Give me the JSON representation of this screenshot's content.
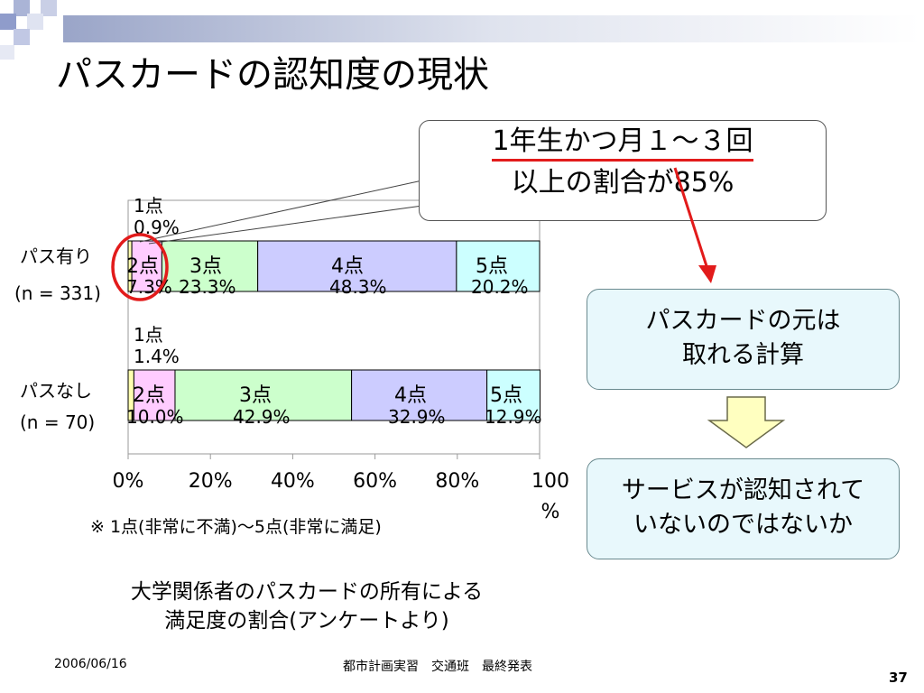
{
  "slide": {
    "title": "パスカードの認知度の現状",
    "note": "※ 1点(非常に不満)～5点(非常に満足)",
    "caption_line1": "大学関係者のパスカードの所有による",
    "caption_line2": "満足度の割合(アンケートより)",
    "footer_date": "2006/06/16",
    "footer_center": "都市計画実習　交通班　最終発表",
    "page_number": "37"
  },
  "callout": {
    "line1": "1年生かつ月１～３回",
    "line2": "以上の割合が85%"
  },
  "box1": {
    "line1": "パスカードの元は",
    "line2": "取れる計算"
  },
  "box2": {
    "line1": "サービスが認知されて",
    "line2": "いないのではないか"
  },
  "colors": {
    "seg1": "#ffffb0",
    "seg2": "#ffccff",
    "seg3": "#ccffcc",
    "seg4": "#ccccff",
    "seg5": "#ccffff",
    "accent_red": "#e21b1b",
    "arrow_fill": "#ffffc0"
  },
  "chart_data": {
    "type": "bar",
    "orientation": "horizontal-stacked-percent",
    "xlim": [
      0,
      100
    ],
    "x_tick_labels": [
      "0%",
      "20%",
      "40%",
      "60%",
      "80%",
      "100\n%"
    ],
    "rows": [
      {
        "label": "パス有り",
        "n_label": "(n = 331)",
        "segments": [
          {
            "name": "1点",
            "value": 0.9,
            "value_label": "0.9%"
          },
          {
            "name": "2点",
            "value": 7.3,
            "value_label": "7.3%"
          },
          {
            "name": "3点",
            "value": 23.3,
            "value_label": "23.3%"
          },
          {
            "name": "4点",
            "value": 48.3,
            "value_label": "48.3%"
          },
          {
            "name": "5点",
            "value": 20.2,
            "value_label": "20.2%"
          }
        ]
      },
      {
        "label": "パスなし",
        "n_label": "(n = 70)",
        "segments": [
          {
            "name": "1点",
            "value": 1.4,
            "value_label": "1.4%"
          },
          {
            "name": "2点",
            "value": 10.0,
            "value_label": "10.0%"
          },
          {
            "name": "3点",
            "value": 42.9,
            "value_label": "42.9%"
          },
          {
            "name": "4点",
            "value": 32.9,
            "value_label": "32.9%"
          },
          {
            "name": "5点",
            "value": 12.9,
            "value_label": "12.9%"
          }
        ]
      }
    ]
  }
}
